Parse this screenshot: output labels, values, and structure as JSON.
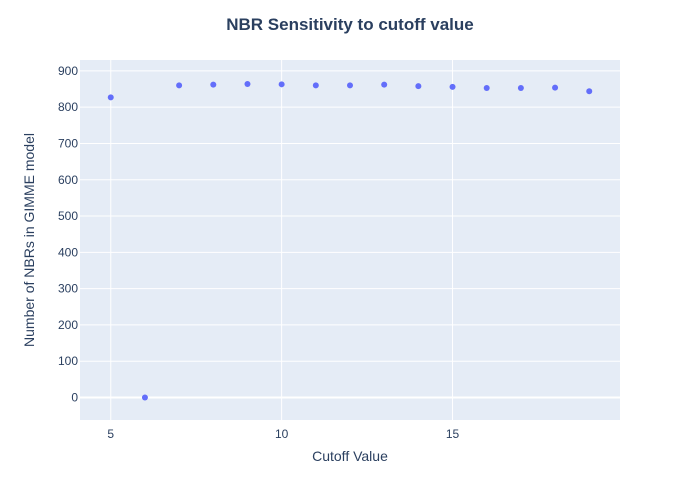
{
  "chart_data": {
    "type": "scatter",
    "title": "NBR Sensitivity to cutoff value",
    "xlabel": "Cutoff Value",
    "ylabel": "Number of NBRs in GIMME model",
    "x": [
      5,
      6,
      7,
      8,
      9,
      10,
      11,
      12,
      13,
      14,
      15,
      16,
      17,
      18,
      19
    ],
    "y": [
      827,
      0,
      860,
      862,
      864,
      863,
      860,
      860,
      862,
      858,
      856,
      853,
      853,
      854,
      844
    ],
    "xlim": [
      4.1,
      19.9
    ],
    "ylim": [
      -62,
      930
    ],
    "xticks": [
      5,
      10,
      15
    ],
    "yticks": [
      0,
      100,
      200,
      300,
      400,
      500,
      600,
      700,
      800,
      900
    ],
    "grid": true,
    "legend": "none",
    "colors": {
      "marker": "#636efa",
      "plot_bg": "#e5ecf6",
      "grid": "#ffffff",
      "text": "#2a3f5f"
    }
  }
}
